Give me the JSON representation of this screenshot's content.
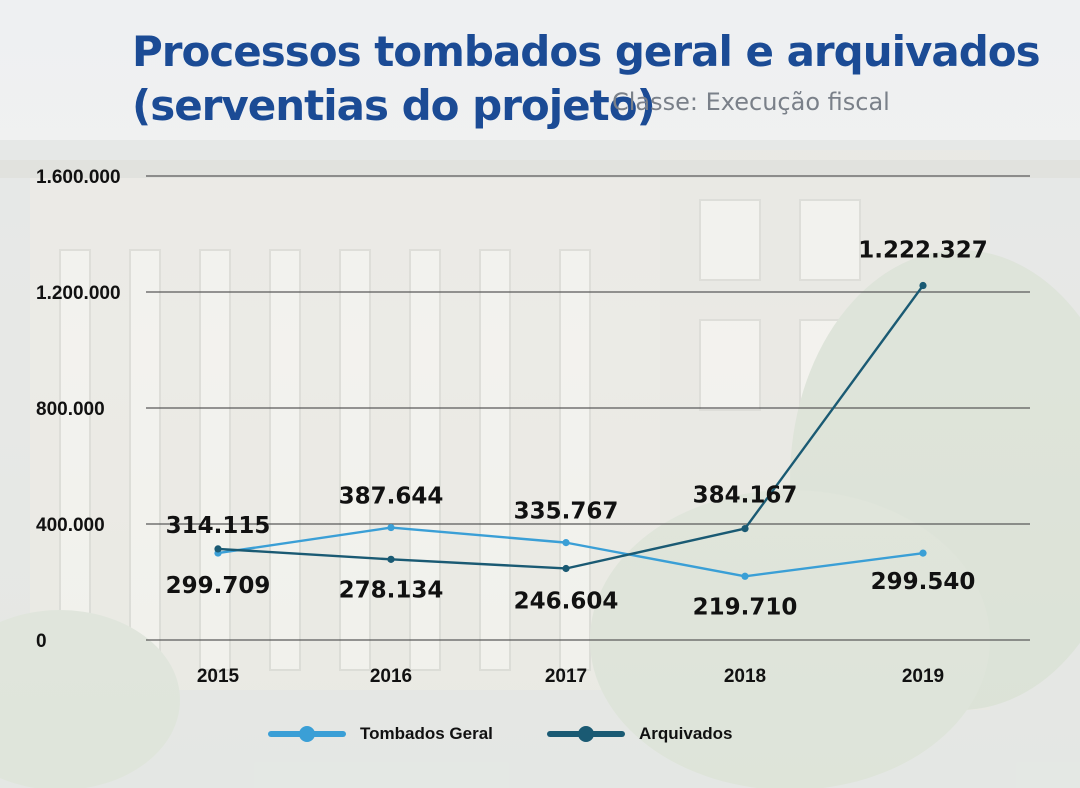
{
  "title_line1": "Processos tombados geral e arquivados",
  "title_line2": "(serventias do projeto)",
  "subtitle": "Classe: Execução fiscal",
  "colors": {
    "tombados": "#3a9fd6",
    "arquivados": "#1a5a73",
    "title": "#1b4b95",
    "grid": "#5a5a5a"
  },
  "chart_data": {
    "type": "line",
    "title": "Processos tombados geral e arquivados (serventias do projeto)",
    "subtitle": "Classe: Execução fiscal",
    "categories": [
      "2015",
      "2016",
      "2017",
      "2018",
      "2019"
    ],
    "yticks": [
      0,
      400000,
      800000,
      1200000,
      1600000
    ],
    "ytick_labels": [
      "0",
      "400.000",
      "800.000",
      "1.200.000",
      "1.600.000"
    ],
    "ylim": [
      0,
      1600000
    ],
    "grid": true,
    "legend_position": "bottom",
    "series": [
      {
        "name": "Tombados Geral",
        "color_key": "tombados",
        "values": [
          299709,
          387644,
          335767,
          219710,
          299540
        ],
        "labels": [
          "299.709",
          "387.644",
          "335.767",
          "219.710",
          "299.540"
        ]
      },
      {
        "name": "Arquivados",
        "color_key": "arquivados",
        "values": [
          314115,
          278134,
          246604,
          384167,
          1222327
        ],
        "labels": [
          "314.115",
          "278.134",
          "246.604",
          "384.167",
          "1.222.327"
        ]
      }
    ]
  }
}
